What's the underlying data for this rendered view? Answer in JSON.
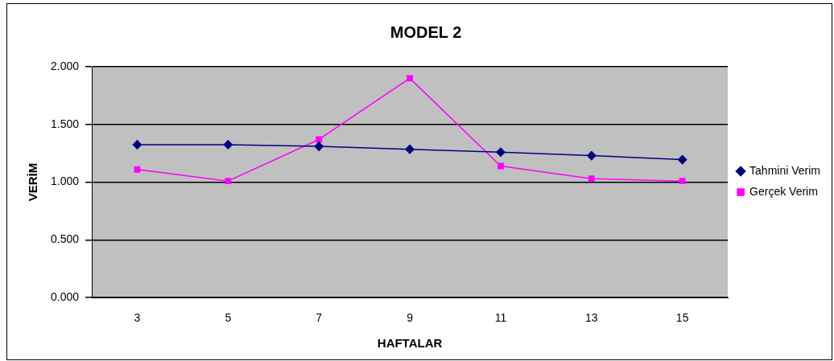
{
  "chart_data": {
    "type": "line",
    "title": "MODEL 2",
    "xlabel": "HAFTALAR",
    "ylabel": "VERİM",
    "categories": [
      "3",
      "5",
      "7",
      "9",
      "11",
      "13",
      "15"
    ],
    "series": [
      {
        "name": "Tahmini Verim",
        "color": "#000080",
        "values": [
          1.325,
          1.325,
          1.31,
          1.285,
          1.26,
          1.23,
          1.195
        ],
        "marker": "diamond"
      },
      {
        "name": "Gerçek Verim",
        "color": "#ff00ff",
        "values": [
          1.11,
          1.01,
          1.37,
          1.9,
          1.14,
          1.03,
          1.01
        ],
        "marker": "square"
      }
    ],
    "ylim": [
      0,
      2
    ],
    "yticks": [
      {
        "value": 0,
        "label": "0.000"
      },
      {
        "value": 0.5,
        "label": "0.500"
      },
      {
        "value": 1,
        "label": "1.000"
      },
      {
        "value": 1.5,
        "label": "1.500"
      },
      {
        "value": 2,
        "label": "2.000"
      }
    ],
    "grid": "y",
    "legend": "right",
    "line_style": "solid"
  }
}
